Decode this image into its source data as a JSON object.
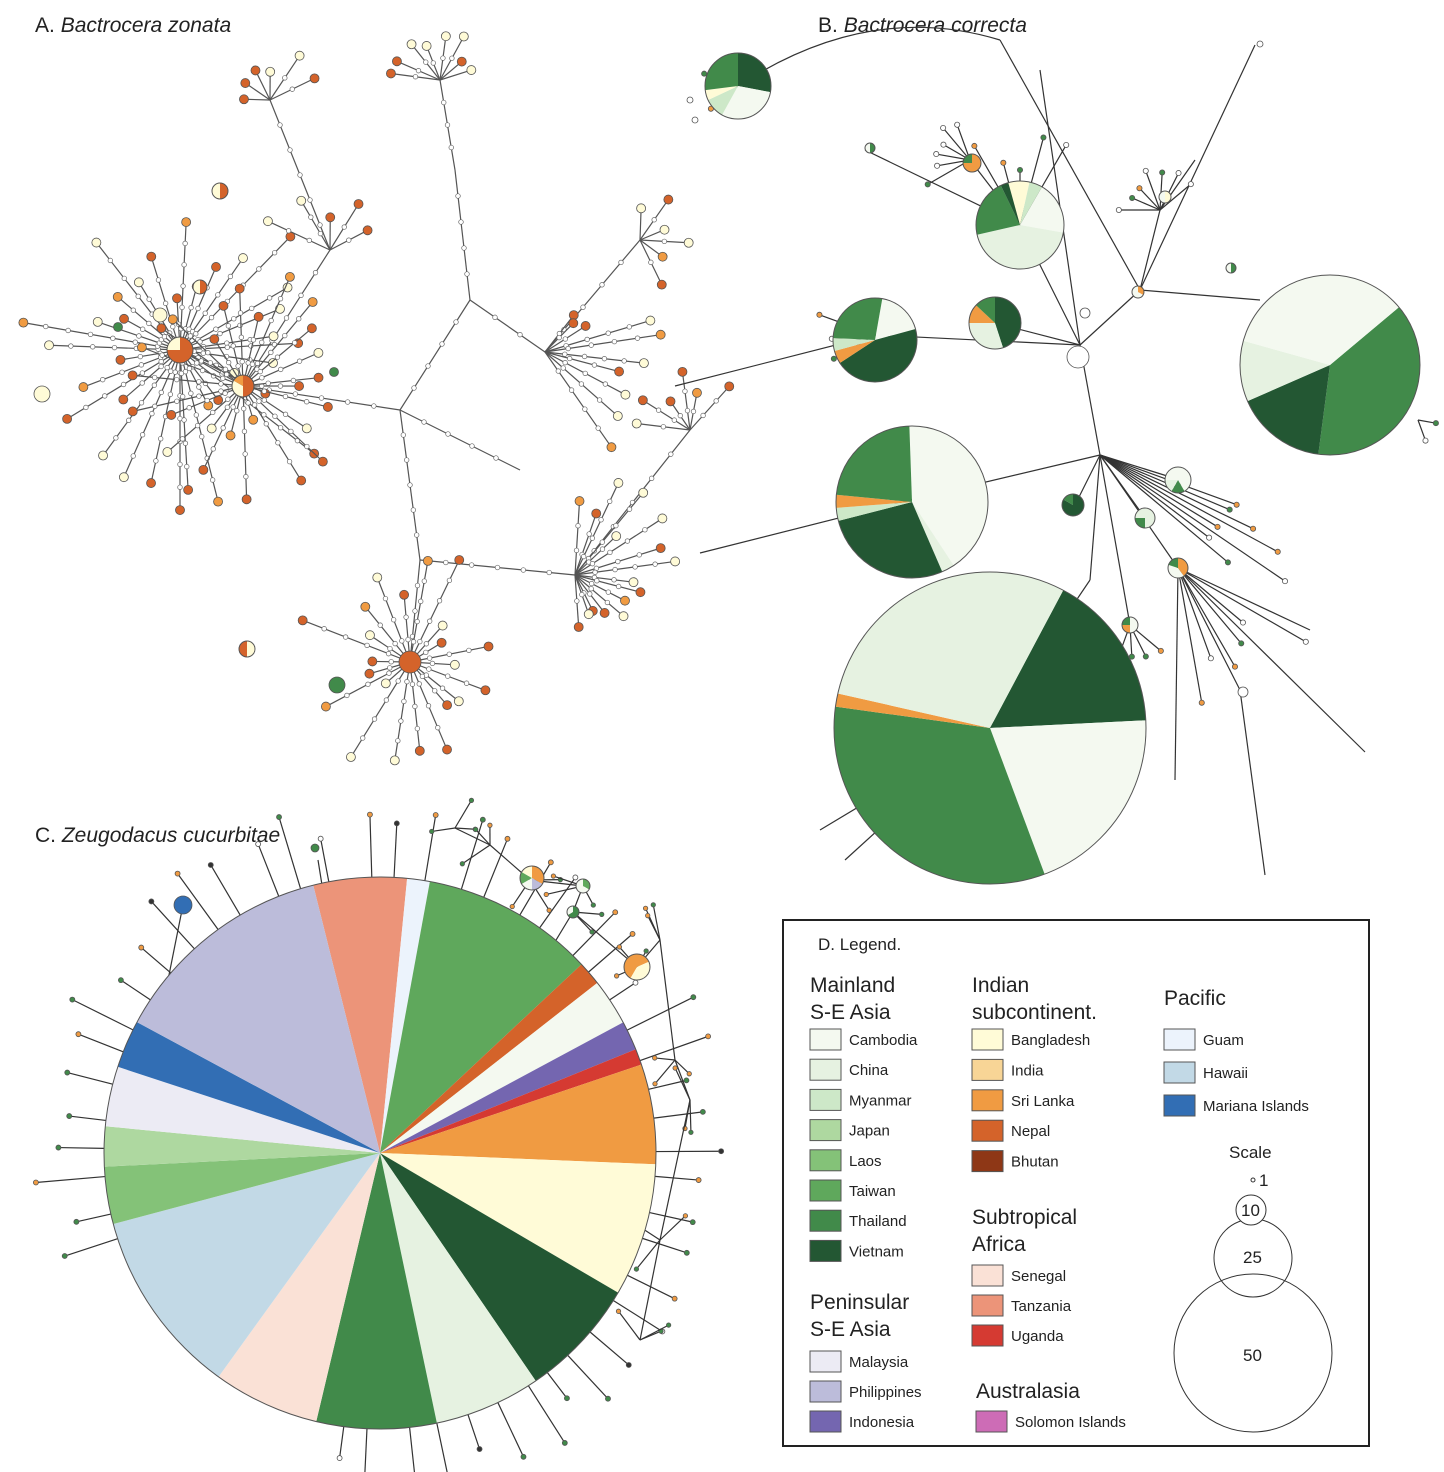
{
  "panels": [
    {
      "id": "A",
      "letter": "A.",
      "species": "Bactrocera zonata"
    },
    {
      "id": "B",
      "letter": "B.",
      "species": "Bactrocera correcta"
    },
    {
      "id": "C",
      "letter": "C.",
      "species": "Zeugodacus cucurbitae"
    }
  ],
  "legend": {
    "title": "D. Legend.",
    "groups": [
      {
        "id": "mainland",
        "heading": [
          "Mainland",
          "S-E Asia"
        ],
        "items": [
          {
            "label": "Cambodia",
            "color": "#f4f9f0"
          },
          {
            "label": "China",
            "color": "#e6f2e1"
          },
          {
            "label": "Myanmar",
            "color": "#cde8c8"
          },
          {
            "label": "Japan",
            "color": "#aed8a0"
          },
          {
            "label": "Laos",
            "color": "#84c278"
          },
          {
            "label": "Taiwan",
            "color": "#5fa85c"
          },
          {
            "label": "Thailand",
            "color": "#418a4a"
          },
          {
            "label": "Vietnam",
            "color": "#235733"
          }
        ]
      },
      {
        "id": "peninsular",
        "heading": [
          "Peninsular",
          "S-E Asia"
        ],
        "items": [
          {
            "label": "Malaysia",
            "color": "#ecebf4"
          },
          {
            "label": "Philippines",
            "color": "#bcbcda"
          },
          {
            "label": "Indonesia",
            "color": "#7466b0"
          }
        ]
      },
      {
        "id": "indian",
        "heading": [
          "Indian",
          "subcontinent."
        ],
        "items": [
          {
            "label": "Bangladesh",
            "color": "#fffbd7"
          },
          {
            "label": "India",
            "color": "#f8d596"
          },
          {
            "label": "Sri Lanka",
            "color": "#f09b42"
          },
          {
            "label": "Nepal",
            "color": "#d4632a"
          },
          {
            "label": "Bhutan",
            "color": "#8e3716"
          }
        ]
      },
      {
        "id": "africa",
        "heading": [
          "Subtropical",
          "Africa"
        ],
        "items": [
          {
            "label": "Senegal",
            "color": "#fae1d6"
          },
          {
            "label": "Tanzania",
            "color": "#ec9479"
          },
          {
            "label": "Uganda",
            "color": "#d53a32"
          }
        ]
      },
      {
        "id": "australasia",
        "heading": [
          "Australasia"
        ],
        "items": [
          {
            "label": "Solomon Islands",
            "color": "#cd6cb6"
          }
        ]
      },
      {
        "id": "pacific",
        "heading": [
          "Pacific"
        ],
        "items": [
          {
            "label": "Guam",
            "color": "#ecf3fc"
          },
          {
            "label": "Hawaii",
            "color": "#c2d9e6"
          },
          {
            "label": "Mariana Islands",
            "color": "#326eb4"
          }
        ]
      }
    ],
    "scale": {
      "title": "Scale",
      "values": [
        "1",
        "10",
        "25",
        "50"
      ]
    }
  }
}
